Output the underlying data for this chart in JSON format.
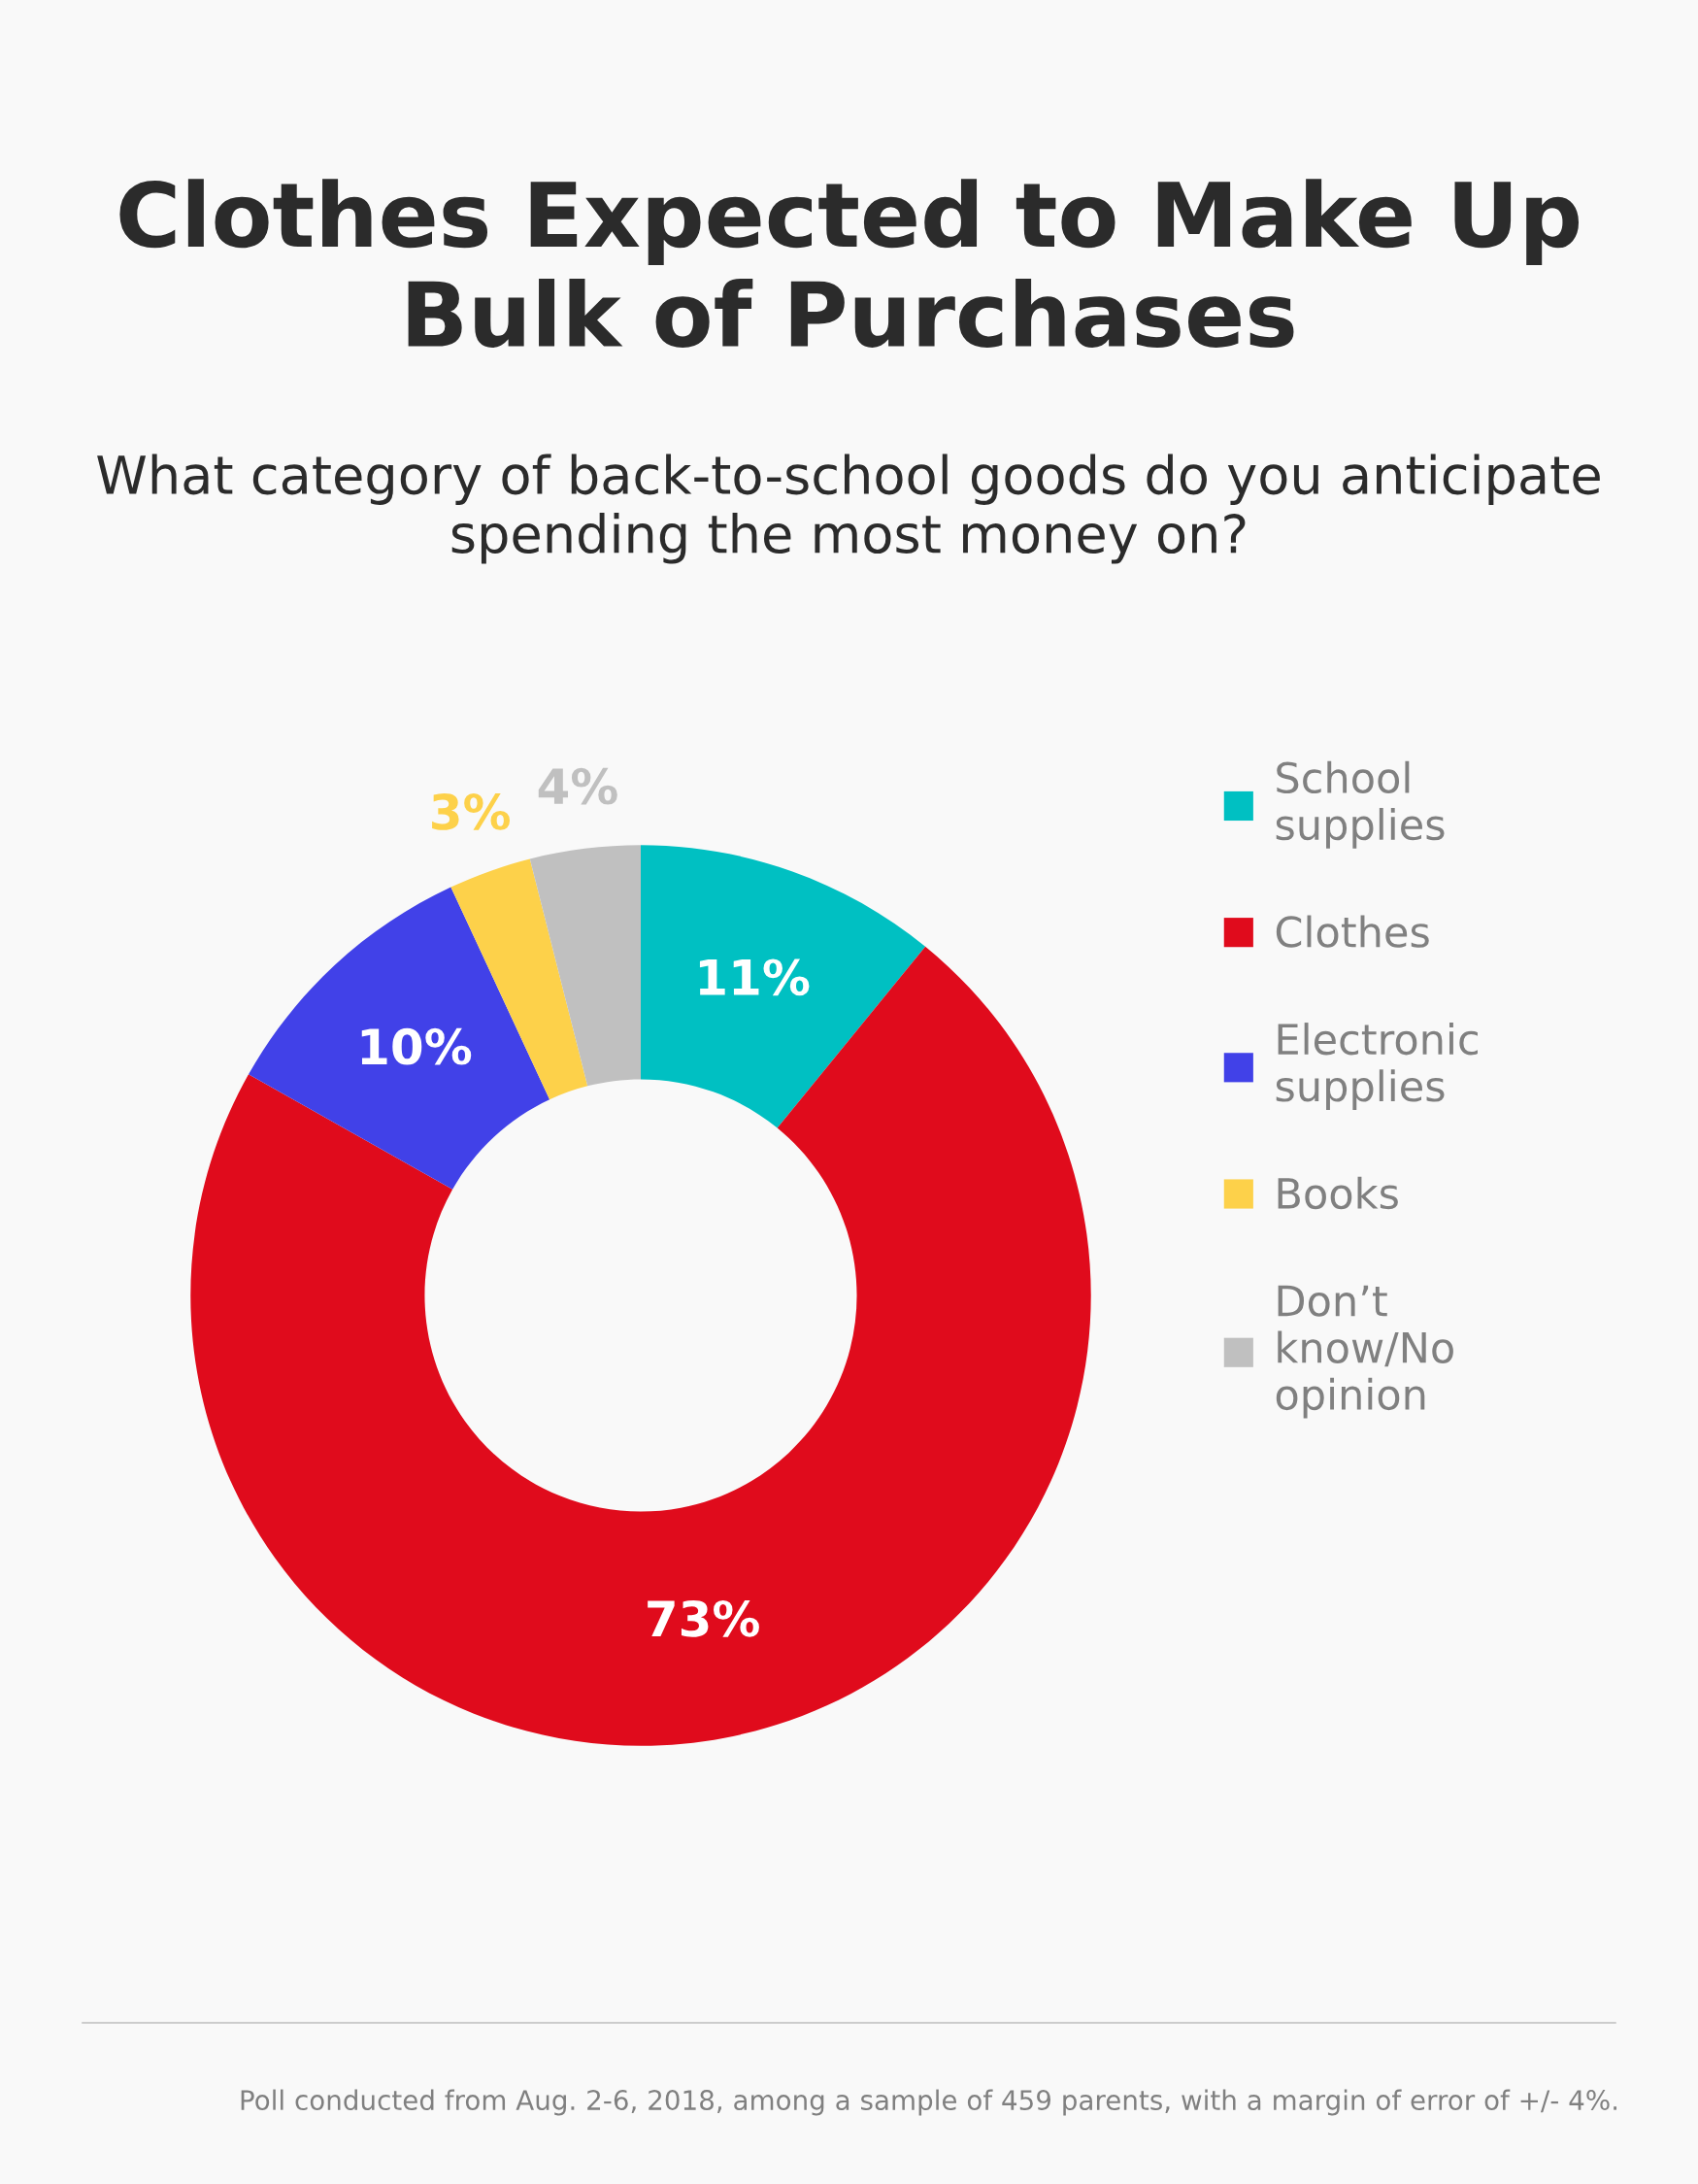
{
  "chart_data": {
    "type": "donut",
    "title": "Clothes Expected to Make Up Bulk of Purchases",
    "subtitle": "What category of back-to-school goods do you anticipate spending the most money on?",
    "categories": [
      "School supplies",
      "Clothes",
      "Electronic supplies",
      "Books",
      "Don’t know/No opinion"
    ],
    "values": [
      11,
      73,
      10,
      3,
      4
    ],
    "colors": [
      "#00c0c2",
      "#e00b1c",
      "#4141e8",
      "#fdd14a",
      "#c0c0c0"
    ],
    "value_labels": [
      "11%",
      "73%",
      "10%",
      "3%",
      "4%"
    ],
    "legend": "right",
    "annotations": [
      "Poll conducted from Aug. 2-6, 2018, among a sample of 459 parents, with a margin of error of +/- 4%."
    ]
  }
}
